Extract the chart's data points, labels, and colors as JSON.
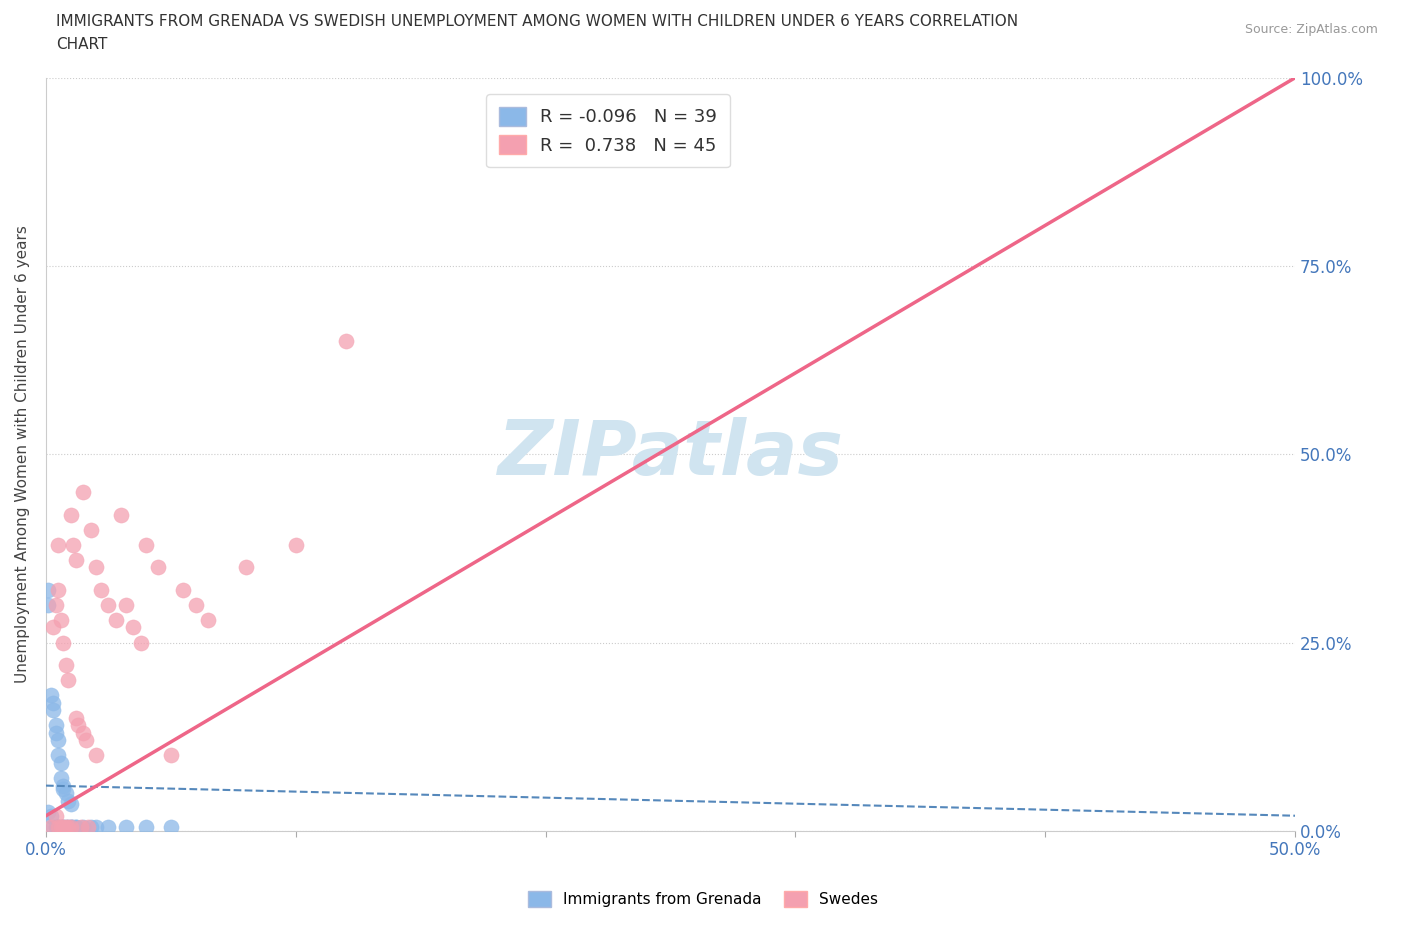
{
  "title_line1": "IMMIGRANTS FROM GRENADA VS SWEDISH UNEMPLOYMENT AMONG WOMEN WITH CHILDREN UNDER 6 YEARS CORRELATION",
  "title_line2": "CHART",
  "source": "Source: ZipAtlas.com",
  "ylabel": "Unemployment Among Women with Children Under 6 years",
  "xlim": [
    0.0,
    0.5
  ],
  "ylim": [
    0.0,
    1.0
  ],
  "xticks": [
    0.0,
    0.1,
    0.2,
    0.3,
    0.4,
    0.5
  ],
  "xticklabels": [
    "0.0%",
    "",
    "",
    "",
    "",
    "50.0%"
  ],
  "yticks_left": [
    0.0,
    0.25,
    0.5,
    0.75,
    1.0
  ],
  "yticklabels_left": [
    "",
    "",
    "",
    "",
    ""
  ],
  "yticks_right": [
    0.0,
    0.25,
    0.5,
    0.75,
    1.0
  ],
  "yticklabels_right": [
    "0.0%",
    "25.0%",
    "50.0%",
    "75.0%",
    "100.0%"
  ],
  "blue_R": -0.096,
  "blue_N": 39,
  "pink_R": 0.738,
  "pink_N": 45,
  "blue_color": "#8BB8E8",
  "pink_color": "#F4A0B0",
  "blue_line_color": "#5588BB",
  "pink_line_color": "#EE6688",
  "watermark_color": "#D0E4F0",
  "legend_label_blue": "Immigrants from Grenada",
  "legend_label_pink": "Swedes",
  "blue_scatter_x": [
    0.001,
    0.001,
    0.001,
    0.002,
    0.002,
    0.003,
    0.003,
    0.003,
    0.004,
    0.004,
    0.004,
    0.005,
    0.005,
    0.005,
    0.005,
    0.006,
    0.006,
    0.006,
    0.007,
    0.007,
    0.007,
    0.007,
    0.008,
    0.008,
    0.009,
    0.009,
    0.01,
    0.01,
    0.01,
    0.011,
    0.012,
    0.012,
    0.015,
    0.018,
    0.02,
    0.025,
    0.032,
    0.04,
    0.05
  ],
  "blue_scatter_y": [
    0.32,
    0.3,
    0.025,
    0.18,
    0.02,
    0.17,
    0.16,
    0.005,
    0.14,
    0.13,
    0.005,
    0.12,
    0.1,
    0.005,
    0.005,
    0.09,
    0.07,
    0.005,
    0.06,
    0.055,
    0.005,
    0.005,
    0.05,
    0.005,
    0.04,
    0.005,
    0.035,
    0.005,
    0.005,
    0.005,
    0.005,
    0.005,
    0.005,
    0.005,
    0.005,
    0.005,
    0.005,
    0.005,
    0.005
  ],
  "pink_scatter_x": [
    0.002,
    0.003,
    0.004,
    0.004,
    0.005,
    0.005,
    0.005,
    0.006,
    0.006,
    0.007,
    0.007,
    0.008,
    0.008,
    0.009,
    0.009,
    0.01,
    0.01,
    0.011,
    0.012,
    0.012,
    0.013,
    0.014,
    0.015,
    0.015,
    0.016,
    0.017,
    0.018,
    0.02,
    0.02,
    0.022,
    0.025,
    0.028,
    0.03,
    0.032,
    0.035,
    0.038,
    0.04,
    0.045,
    0.05,
    0.055,
    0.06,
    0.065,
    0.08,
    0.1,
    0.12
  ],
  "pink_scatter_y": [
    0.005,
    0.27,
    0.3,
    0.02,
    0.32,
    0.005,
    0.38,
    0.28,
    0.005,
    0.25,
    0.005,
    0.22,
    0.005,
    0.2,
    0.005,
    0.42,
    0.005,
    0.38,
    0.36,
    0.15,
    0.14,
    0.005,
    0.45,
    0.13,
    0.12,
    0.005,
    0.4,
    0.35,
    0.1,
    0.32,
    0.3,
    0.28,
    0.42,
    0.3,
    0.27,
    0.25,
    0.38,
    0.35,
    0.1,
    0.32,
    0.3,
    0.28,
    0.35,
    0.38,
    0.65
  ],
  "pink_line_x0": 0.0,
  "pink_line_y0": 0.02,
  "pink_line_x1": 0.5,
  "pink_line_y1": 1.0,
  "blue_line_x0": 0.0,
  "blue_line_y0": 0.06,
  "blue_line_x1": 0.5,
  "blue_line_y1": 0.02
}
